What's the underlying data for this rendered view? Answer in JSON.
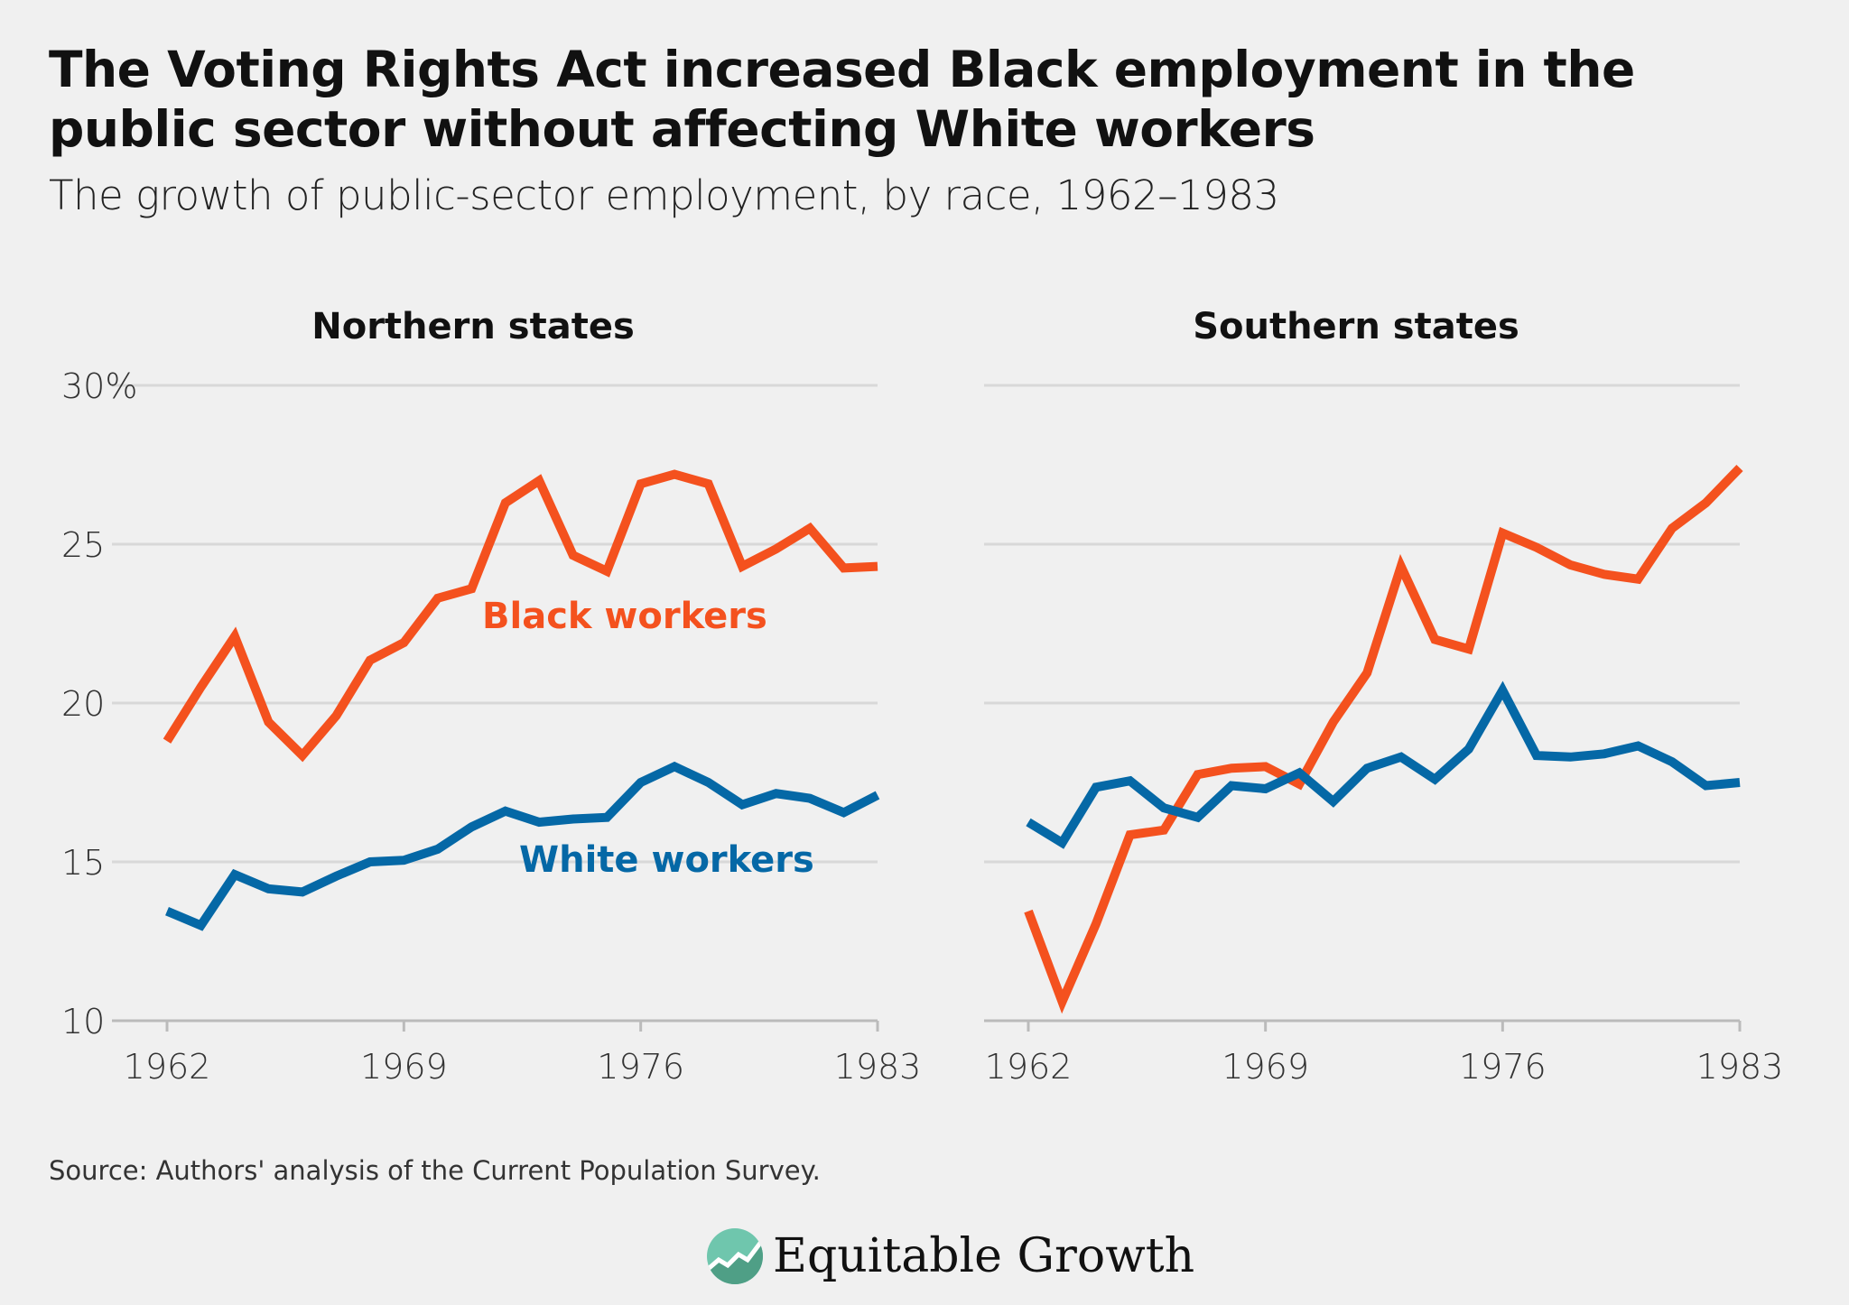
{
  "title": "The Voting Rights Act increased Black employment in the public sector without affecting White workers",
  "subtitle": "The growth of public-sector employment, by race, 1962–1983",
  "source": "Source: Authors' analysis of the Current Population Survey.",
  "logo_text": "Equitable Growth",
  "chart_data": [
    {
      "type": "line",
      "title": "Northern states",
      "x": [
        1962,
        1963,
        1964,
        1965,
        1966,
        1967,
        1968,
        1969,
        1970,
        1971,
        1972,
        1973,
        1974,
        1975,
        1976,
        1977,
        1978,
        1979,
        1980,
        1981,
        1982,
        1983
      ],
      "xticks": [
        "1962",
        "1969",
        "1976",
        "1983"
      ],
      "yticks": [
        "30%",
        "25",
        "20",
        "15",
        "10"
      ],
      "ylim": [
        10,
        30
      ],
      "grid": true,
      "series": [
        {
          "name": "Black workers",
          "color": "#f4511e",
          "values": [
            18.8,
            20.5,
            22.1,
            19.4,
            18.35,
            19.6,
            21.35,
            21.9,
            23.3,
            23.6,
            26.3,
            27.0,
            24.65,
            24.15,
            26.9,
            27.2,
            26.9,
            24.3,
            24.85,
            25.5,
            24.25,
            24.3
          ]
        },
        {
          "name": "White workers",
          "color": "#0568a6",
          "values": [
            13.45,
            13.0,
            14.6,
            14.15,
            14.05,
            14.55,
            15.0,
            15.05,
            15.4,
            16.1,
            16.6,
            16.25,
            16.35,
            16.4,
            17.5,
            18.0,
            17.5,
            16.8,
            17.15,
            17.0,
            16.55,
            17.1
          ]
        }
      ]
    },
    {
      "type": "line",
      "title": "Southern states",
      "x": [
        1962,
        1963,
        1964,
        1965,
        1966,
        1967,
        1968,
        1969,
        1970,
        1971,
        1972,
        1973,
        1974,
        1975,
        1976,
        1977,
        1978,
        1979,
        1980,
        1981,
        1982,
        1983
      ],
      "xticks": [
        "1962",
        "1969",
        "1976",
        "1983"
      ],
      "ylim": [
        10,
        30
      ],
      "grid": true,
      "series": [
        {
          "color": "#f4511e",
          "values": [
            13.45,
            10.6,
            13.05,
            15.85,
            16.0,
            17.75,
            17.95,
            18.0,
            17.45,
            19.4,
            20.95,
            24.3,
            22.0,
            21.7,
            25.35,
            24.9,
            24.35,
            24.05,
            23.9,
            25.5,
            26.3,
            27.4
          ]
        },
        {
          "color": "#0568a6",
          "values": [
            16.25,
            15.6,
            17.35,
            17.55,
            16.7,
            16.4,
            17.4,
            17.3,
            17.8,
            16.9,
            17.95,
            18.3,
            17.6,
            18.55,
            20.4,
            18.35,
            18.3,
            18.4,
            18.65,
            18.15,
            17.4,
            17.5
          ]
        }
      ]
    }
  ]
}
